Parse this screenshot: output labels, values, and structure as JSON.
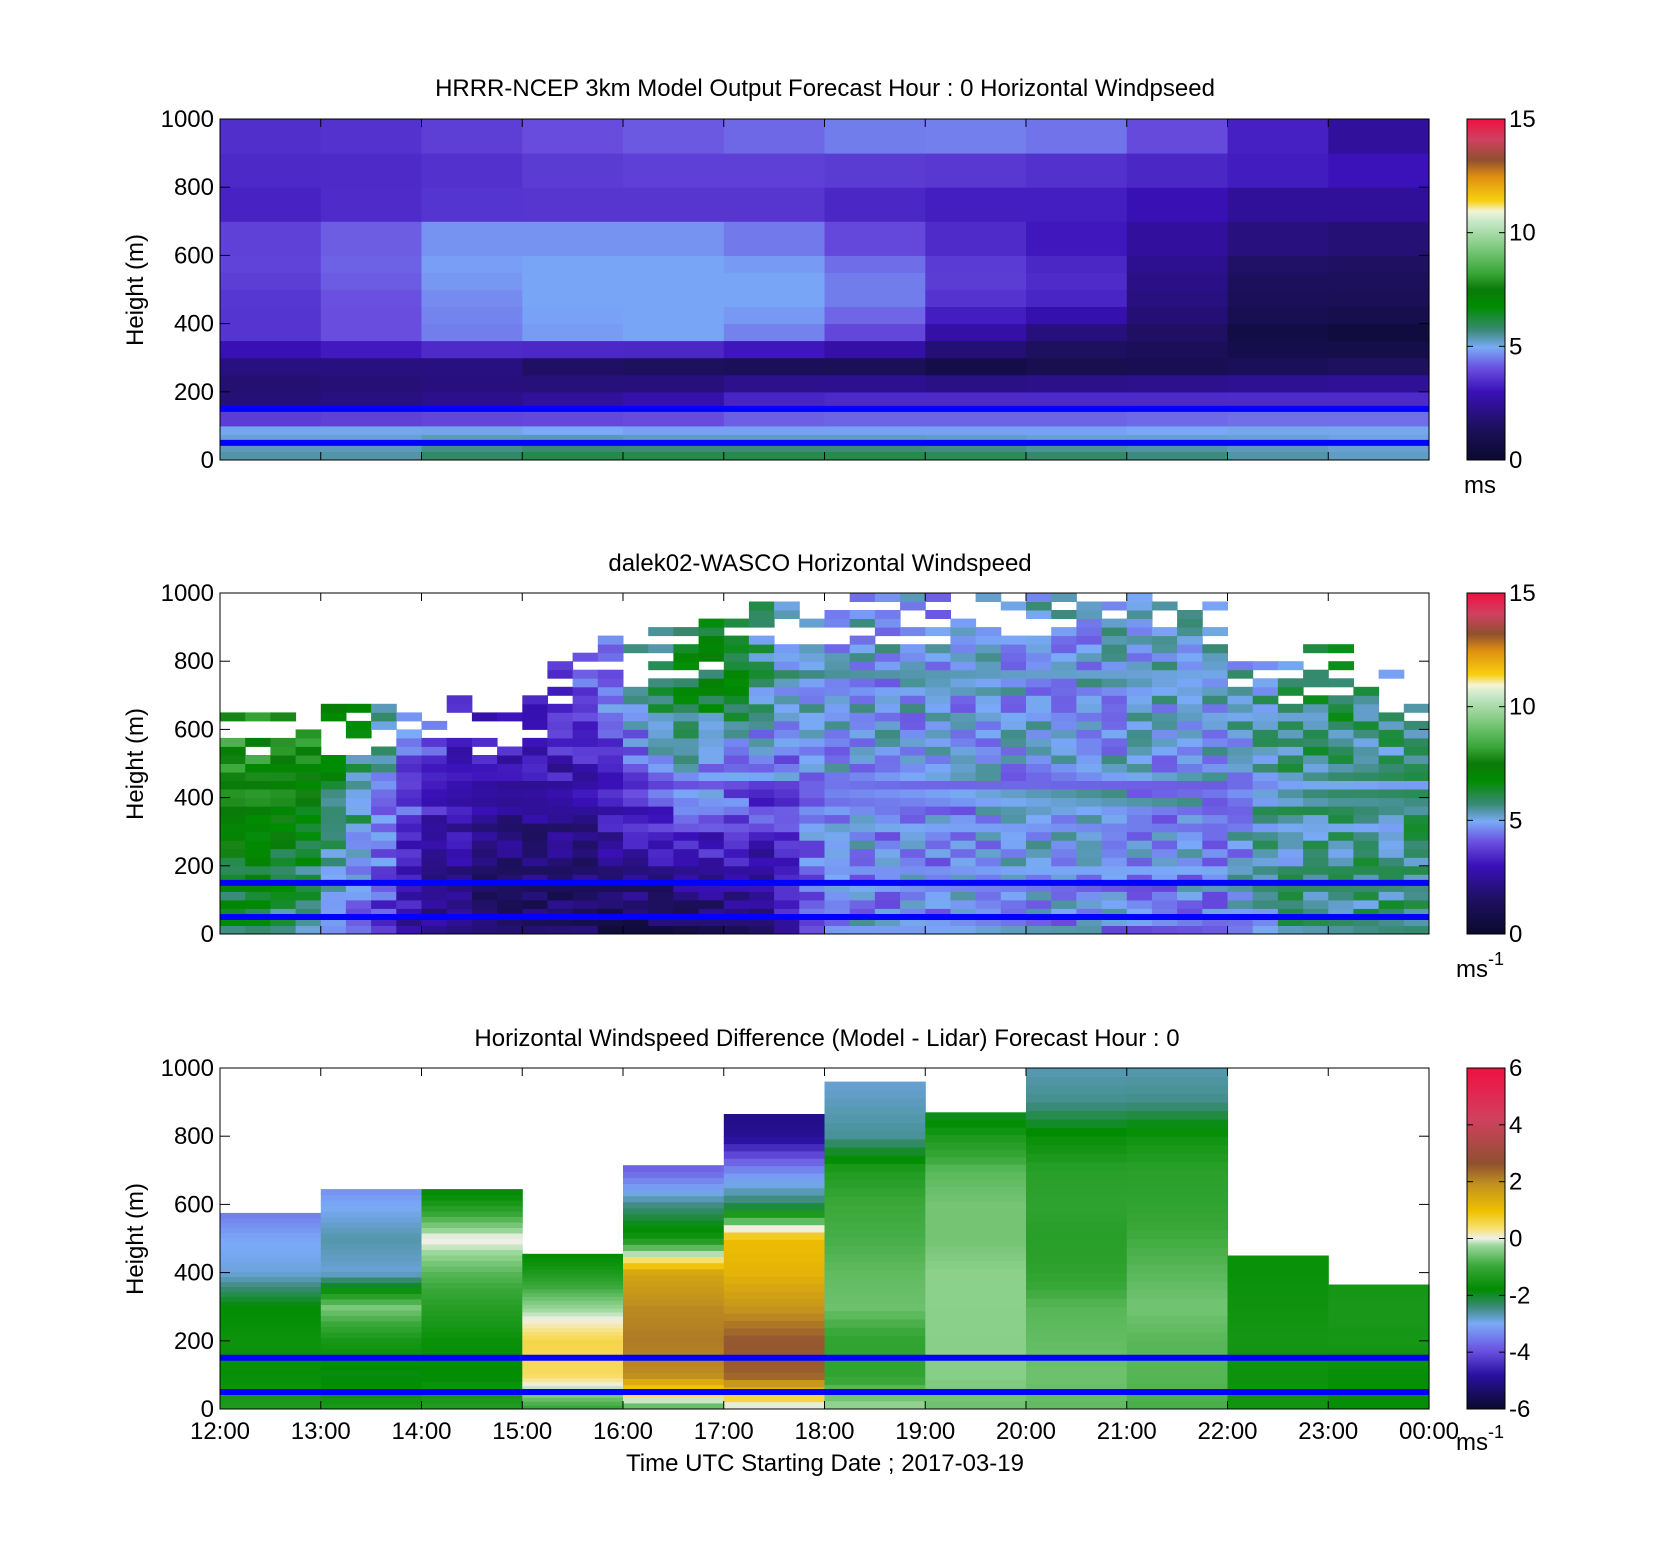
{
  "figure": {
    "xlabel": "Time UTC  Starting Date ; 2017-03-19",
    "x_ticks": [
      "12:00",
      "13:00",
      "14:00",
      "15:00",
      "16:00",
      "17:00",
      "18:00",
      "19:00",
      "20:00",
      "21:00",
      "22:00",
      "23:00",
      "00:00"
    ]
  },
  "colormaps": {
    "speed": [
      [
        0.0,
        "#0a0a2e"
      ],
      [
        0.1,
        "#1e1060"
      ],
      [
        0.2,
        "#3a10b8"
      ],
      [
        0.27,
        "#6a50e0"
      ],
      [
        0.33,
        "#7aaaf8"
      ],
      [
        0.38,
        "#3a8a78"
      ],
      [
        0.45,
        "#008c00"
      ],
      [
        0.5,
        "#0a7a0a"
      ],
      [
        0.55,
        "#3aa83a"
      ],
      [
        0.62,
        "#7cc87c"
      ],
      [
        0.7,
        "#c8e8c8"
      ],
      [
        0.73,
        "#f4f4d8"
      ],
      [
        0.76,
        "#f8d010"
      ],
      [
        0.83,
        "#e09010"
      ],
      [
        0.88,
        "#905030"
      ],
      [
        0.94,
        "#d04060"
      ],
      [
        1.0,
        "#f01040"
      ]
    ],
    "diff": [
      [
        0.0,
        "#0a0a2e"
      ],
      [
        0.1,
        "#2a10a0"
      ],
      [
        0.17,
        "#6a50e0"
      ],
      [
        0.25,
        "#7aaaf8"
      ],
      [
        0.3,
        "#3a8a78"
      ],
      [
        0.35,
        "#008c00"
      ],
      [
        0.42,
        "#3aa83a"
      ],
      [
        0.48,
        "#9cd89c"
      ],
      [
        0.5,
        "#f0f0e8"
      ],
      [
        0.53,
        "#f8e070"
      ],
      [
        0.58,
        "#f0c000"
      ],
      [
        0.66,
        "#c09020"
      ],
      [
        0.72,
        "#905030"
      ],
      [
        0.85,
        "#d04060"
      ],
      [
        1.0,
        "#f01040"
      ]
    ]
  },
  "chart_data": [
    {
      "type": "heatmap",
      "title": "HRRR-NCEP 3km Model Output   Forecast Hour : 0 Horizontal Windpseed",
      "ylabel": "Height (m)",
      "unit": "ms",
      "ylim": [
        0,
        1000
      ],
      "y_ticks": [
        "0",
        "200",
        "400",
        "600",
        "800",
        "1000"
      ],
      "colorbar": {
        "min": 0,
        "max": 15,
        "ticks": [
          "0",
          "5",
          "10",
          "15"
        ],
        "colormap": "speed"
      },
      "reference_lines_m": [
        150,
        50
      ],
      "x_hours": [
        12,
        13,
        14,
        15,
        16,
        17,
        18,
        19,
        20,
        21,
        22,
        23
      ],
      "profiles_ms": [
        [
          5.5,
          5.5,
          6.0,
          6.3,
          6.3,
          6.3,
          6.3,
          6.2,
          6.0,
          5.8,
          5.5,
          5.3
        ],
        [
          5.0,
          5.0,
          5.0,
          4.9,
          4.8,
          4.8,
          4.8,
          4.8,
          4.8,
          4.9,
          5.0,
          5.0
        ],
        [
          1.6,
          1.8,
          2.0,
          2.3,
          2.6,
          3.2,
          3.3,
          3.3,
          3.3,
          3.3,
          3.3,
          3.3
        ],
        [
          2.0,
          2.0,
          2.0,
          1.5,
          1.3,
          1.2,
          1.2,
          0.8,
          1.0,
          1.1,
          1.3,
          1.5
        ],
        [
          3.6,
          4.0,
          4.5,
          4.8,
          4.9,
          4.5,
          3.8,
          2.6,
          1.8,
          1.5,
          0.6,
          0.4
        ],
        [
          3.6,
          4.0,
          4.6,
          4.9,
          4.9,
          4.9,
          4.5,
          3.5,
          3.3,
          2.0,
          1.3,
          1.2
        ],
        [
          3.8,
          4.2,
          4.8,
          4.9,
          4.9,
          4.9,
          4.5,
          3.8,
          3.5,
          2.2,
          1.4,
          1.4
        ],
        [
          3.9,
          4.3,
          4.9,
          4.9,
          4.9,
          4.6,
          4.0,
          3.5,
          3.1,
          2.5,
          2.0,
          1.8
        ],
        [
          3.3,
          3.5,
          3.7,
          3.7,
          3.7,
          3.7,
          3.4,
          3.2,
          3.2,
          2.8,
          2.2,
          2.2
        ],
        [
          3.3,
          3.3,
          3.3,
          3.4,
          3.4,
          3.4,
          3.3,
          3.3,
          3.3,
          3.3,
          3.3,
          3.3
        ],
        [
          3.6,
          3.7,
          4.0,
          4.3,
          4.5,
          4.5,
          4.5,
          4.3,
          4.0,
          3.5,
          3.0,
          2.5
        ],
        [
          3.4,
          3.4,
          3.5,
          3.6,
          3.7,
          4.0,
          4.5,
          4.8,
          4.9,
          4.5,
          3.6,
          2.5
        ]
      ]
    },
    {
      "type": "heatmap",
      "title": "dalek02-WASCO  Horizontal Windspeed",
      "ylabel": "Height (m)",
      "unit": "ms",
      "unit_exponent": "-1",
      "ylim": [
        0,
        1000
      ],
      "y_ticks": [
        "0",
        "200",
        "400",
        "600",
        "800",
        "1000"
      ],
      "colorbar": {
        "min": 0,
        "max": 15,
        "ticks": [
          "0",
          "5",
          "10",
          "15"
        ],
        "colormap": "speed"
      },
      "reference_lines_m": [
        150,
        50
      ],
      "time_step_hours": 0.25,
      "height_step_m": 25,
      "x_start_hour": 12,
      "top_heights_m": [
        650,
        650,
        650,
        670,
        660,
        655,
        655,
        650,
        640,
        700,
        640,
        650,
        680,
        780,
        820,
        860,
        870,
        880,
        880,
        920,
        940,
        970,
        980,
        990,
        990,
        1000,
        980,
        980,
        990,
        1000,
        980,
        1000,
        1000,
        990,
        990,
        1000,
        1000,
        1000,
        980,
        960,
        860,
        830,
        800,
        830,
        830,
        760,
        760,
        740
      ],
      "speed_anchors_hours": [
        12,
        12.5,
        13,
        13.5,
        14,
        14.5,
        15,
        15.5,
        16,
        16.5,
        17,
        17.5,
        18,
        19,
        20,
        21,
        22,
        22.5,
        23,
        23.5,
        24
      ],
      "speed_anchors_low_ms": [
        6.0,
        6.2,
        5.0,
        4.2,
        2.2,
        1.6,
        1.2,
        1.3,
        1.2,
        1.1,
        1.5,
        2.0,
        4.9,
        4.6,
        4.8,
        4.6,
        4.6,
        5.5,
        5.5,
        5.6,
        5.6
      ],
      "speed_anchors_high_ms": [
        8.6,
        8.4,
        8.0,
        6.2,
        4.5,
        3.8,
        3.5,
        3.8,
        5.0,
        6.5,
        6.5,
        5.3,
        4.9,
        4.9,
        4.9,
        5.0,
        5.0,
        5.5,
        6.0,
        5.6,
        5.6
      ],
      "bottom_dots_ms": [
        6.3,
        6.0,
        5.0,
        3.5,
        2.5,
        1.5,
        1.4,
        1.2,
        1.1,
        1.1,
        1.0,
        1.0,
        1.2,
        2.0,
        4.8,
        4.8,
        4.8,
        4.8,
        4.8,
        4.7,
        4.7,
        4.7,
        4.7,
        4.7,
        4.6,
        4.6,
        4.6,
        4.6,
        4.6,
        4.7,
        4.6,
        4.5,
        4.7,
        4.7,
        4.7,
        4.7,
        4.8,
        4.8,
        4.8,
        4.8,
        5.0,
        5.5,
        5.6,
        5.6,
        5.6,
        5.6,
        5.6,
        5.6
      ]
    },
    {
      "type": "heatmap",
      "title": "Horizontal Windspeed Difference (Model - Lidar) Forecast Hour : 0",
      "ylabel": "Height (m)",
      "unit": "ms",
      "unit_exponent": "-1",
      "ylim": [
        0,
        1000
      ],
      "y_ticks": [
        "0",
        "200",
        "400",
        "600",
        "800",
        "1000"
      ],
      "colorbar": {
        "min": -6,
        "max": 6,
        "ticks": [
          "-6",
          "-4",
          "-2",
          "0",
          "2",
          "4",
          "6"
        ],
        "colormap": "diff"
      },
      "reference_lines_m": [
        150,
        50
      ],
      "x_hours": [
        12,
        13,
        14,
        15,
        16,
        17,
        18,
        19,
        20,
        21,
        22,
        23
      ],
      "top_heights_m": [
        575,
        645,
        645,
        455,
        715,
        865,
        960,
        870,
        1000,
        1000,
        450,
        365
      ],
      "profiles_ms": [
        [
          -1.2,
          -1.3,
          -1.2,
          -1.0,
          -0.8,
          -0.3,
          -0.2,
          -0.6,
          -0.7,
          -0.9,
          -1.6,
          -1.8
        ],
        [
          -1.6,
          -1.8,
          -1.7,
          0.5,
          2.0,
          2.5,
          -1.1,
          -0.4,
          -0.6,
          -0.8,
          -1.7,
          -1.8
        ],
        [
          -1.5,
          -1.4,
          -1.6,
          0.6,
          2.2,
          2.6,
          -1.1,
          -0.4,
          -0.7,
          -0.8,
          -1.6,
          -1.6
        ],
        [
          -1.7,
          -0.4,
          -1.2,
          -0.3,
          2.0,
          1.8,
          -0.6,
          -0.4,
          -0.8,
          -0.6,
          -1.7,
          -1.6
        ],
        [
          -2.8,
          -2.8,
          -0.7,
          -1.4,
          1.5,
          1.2,
          -0.7,
          -0.4,
          -1.2,
          -0.8,
          -1.8,
          -1.7
        ],
        [
          -3.0,
          -2.6,
          0.1,
          -2.2,
          -1.5,
          1.0,
          -0.9,
          -0.6,
          -1.3,
          -1.0,
          -1.8,
          -1.9
        ],
        [
          -3.6,
          -3.0,
          -1.4,
          -2.4,
          -2.5,
          -2.3,
          -1.0,
          -0.6,
          -1.2,
          -1.2,
          -1.6,
          -1.8
        ],
        [
          -3.7,
          -3.6,
          -2.6,
          -2.8,
          -3.8,
          -3.4,
          -1.4,
          -0.8,
          -1.3,
          -1.3,
          -1.6,
          -1.6
        ],
        [
          -3.6,
          -3.5,
          -2.8,
          -2.8,
          -3.6,
          -5.0,
          -2.6,
          -1.5,
          -1.8,
          -1.7,
          -1.6,
          -1.6
        ],
        [
          -3.6,
          -3.5,
          -2.8,
          -2.8,
          -3.6,
          -5.2,
          -2.8,
          -2.4,
          -2.6,
          -2.6,
          -1.6,
          -1.6
        ],
        [
          -3.6,
          -3.5,
          -2.8,
          -2.8,
          -3.6,
          -5.2,
          -3.0,
          -2.6,
          -2.8,
          -2.8,
          -1.6,
          -1.6
        ]
      ]
    }
  ]
}
